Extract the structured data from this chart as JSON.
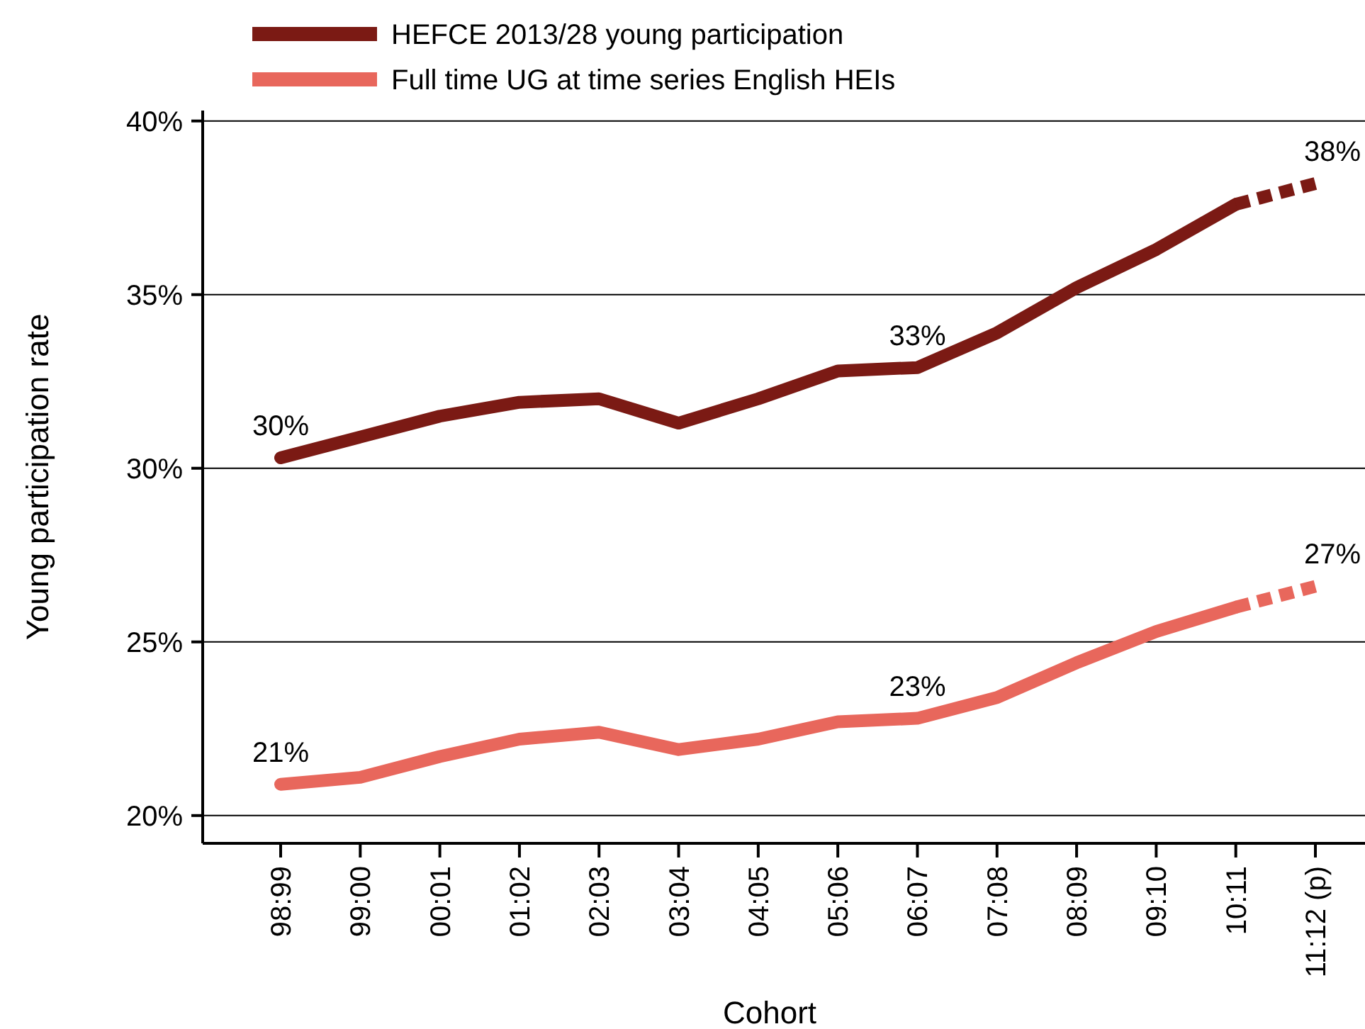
{
  "chart_data": {
    "type": "line",
    "xlabel": "Cohort",
    "ylabel": "Young participation rate",
    "categories": [
      "98:99",
      "99:00",
      "00:01",
      "01:02",
      "02:03",
      "03:04",
      "04:05",
      "05:06",
      "06:07",
      "07:08",
      "08:09",
      "09:10",
      "10:11",
      "11:12 (p)"
    ],
    "series": [
      {
        "name": "HEFCE 2013/28 young participation",
        "color": "#7b1a14",
        "line_style": "solid",
        "values": [
          30.3,
          30.9,
          31.5,
          31.9,
          32.0,
          31.3,
          32.0,
          32.8,
          32.9,
          33.9,
          35.2,
          36.3,
          37.6,
          null
        ]
      },
      {
        "color": "#7b1a14",
        "line_style": "dashed",
        "values": [
          null,
          null,
          null,
          null,
          null,
          null,
          null,
          null,
          null,
          null,
          null,
          null,
          37.6,
          38.2
        ]
      },
      {
        "name": "Full time UG at time series English HEIs",
        "color": "#e8675c",
        "line_style": "solid",
        "values": [
          20.9,
          21.1,
          21.7,
          22.2,
          22.4,
          21.9,
          22.2,
          22.7,
          22.8,
          23.4,
          24.4,
          25.3,
          26.0,
          null
        ]
      },
      {
        "color": "#e8675c",
        "line_style": "dashed",
        "values": [
          null,
          null,
          null,
          null,
          null,
          null,
          null,
          null,
          null,
          null,
          null,
          null,
          26.0,
          26.6
        ]
      }
    ],
    "ylim": [
      19.2,
      40.3
    ],
    "yticks": [
      {
        "value": 20,
        "label": "20%"
      },
      {
        "value": 25,
        "label": "25%"
      },
      {
        "value": 30,
        "label": "30%"
      },
      {
        "value": 35,
        "label": "35%"
      },
      {
        "value": 40,
        "label": "40%"
      }
    ],
    "grid": "y",
    "legend": "top",
    "marker": "none",
    "annotations": [
      {
        "text": "30%",
        "x": "98:99",
        "y": 30.3
      },
      {
        "text": "33%",
        "x": "06:07",
        "y": 32.9
      },
      {
        "text": "38%",
        "x": "11:12 (p)",
        "y": 38.2
      },
      {
        "text": "21%",
        "x": "98:99",
        "y": 20.9
      },
      {
        "text": "23%",
        "x": "06:07",
        "y": 22.8
      },
      {
        "text": "27%",
        "x": "11:12 (p)",
        "y": 26.6
      }
    ]
  }
}
